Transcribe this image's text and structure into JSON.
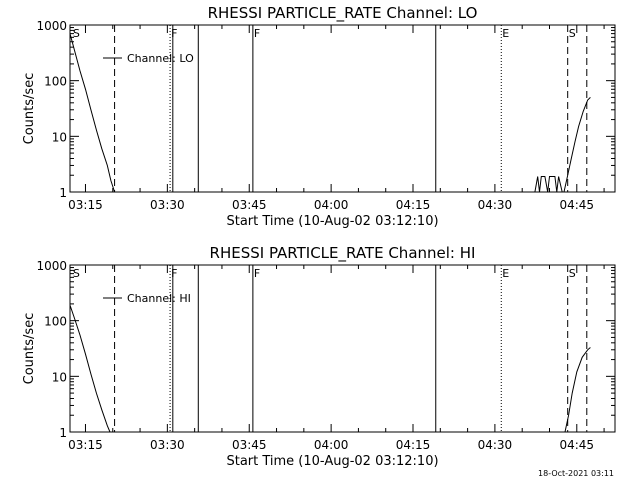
{
  "footer": {
    "date": "18-Oct-2021 03:11"
  },
  "chart_data": [
    {
      "type": "line",
      "title": "RHESSI PARTICLE_RATE Channel: LO",
      "xlabel": "Start Time (10-Aug-02 03:12:10)",
      "ylabel": "Counts/sec",
      "legend": {
        "entry": "Channel: LO",
        "placement": "top-left"
      },
      "yscale": "log",
      "xlim": [
        "03:12:10",
        "04:52:00"
      ],
      "ylim": [
        1,
        1000
      ],
      "x_ticks": [
        "03:15",
        "03:30",
        "03:45",
        "04:00",
        "04:15",
        "04:30",
        "04:45"
      ],
      "y_ticks": [
        "1",
        "10",
        "100",
        "1000"
      ],
      "markers": [
        {
          "time": "03:12:30",
          "label": "S",
          "style": "none"
        },
        {
          "time": "03:20:20",
          "label": "",
          "style": "dashed"
        },
        {
          "time": "03:30:30",
          "label": "F",
          "style": "dotted"
        },
        {
          "time": "03:31:00",
          "label": "",
          "style": "solid"
        },
        {
          "time": "03:35:40",
          "label": "",
          "style": "solid"
        },
        {
          "time": "03:45:40",
          "label": "F",
          "style": "solid"
        },
        {
          "time": "04:19:10",
          "label": "",
          "style": "solid"
        },
        {
          "time": "04:31:10",
          "label": "E",
          "style": "dotted"
        },
        {
          "time": "04:43:20",
          "label": "S",
          "style": "dashed"
        },
        {
          "time": "04:46:50",
          "label": "",
          "style": "dashed"
        }
      ],
      "series": [
        {
          "values": [
            [
              "03:12:10",
              700
            ],
            [
              "03:13:00",
              350
            ],
            [
              "03:14:00",
              150
            ],
            [
              "03:15:00",
              70
            ],
            [
              "03:16:00",
              30
            ],
            [
              "03:17:00",
              13
            ],
            [
              "03:18:00",
              6
            ],
            [
              "03:19:00",
              3
            ],
            [
              "03:19:40",
              1.6
            ],
            [
              "03:20:20",
              1
            ]
          ]
        },
        {
          "values": [
            [
              "04:37:20",
              1
            ],
            [
              "04:37:50",
              1.9
            ],
            [
              "04:38:10",
              1
            ],
            [
              "04:38:30",
              1.9
            ],
            [
              "04:39:10",
              1.9
            ],
            [
              "04:39:40",
              1
            ],
            [
              "04:40:00",
              1.9
            ],
            [
              "04:41:00",
              1.9
            ],
            [
              "04:41:20",
              1
            ],
            [
              "04:41:40",
              1.9
            ],
            [
              "04:42:20",
              1
            ]
          ]
        },
        {
          "values": [
            [
              "04:42:40",
              1
            ],
            [
              "04:43:20",
              2
            ],
            [
              "04:44:00",
              4
            ],
            [
              "04:44:40",
              8
            ],
            [
              "04:45:20",
              15
            ],
            [
              "04:46:10",
              28
            ],
            [
              "04:47:00",
              45
            ],
            [
              "04:47:30",
              50
            ]
          ]
        }
      ]
    },
    {
      "type": "line",
      "title": "RHESSI PARTICLE_RATE Channel: HI",
      "xlabel": "Start Time (10-Aug-02 03:12:10)",
      "ylabel": "Counts/sec",
      "legend": {
        "entry": "Channel: HI",
        "placement": "top-left"
      },
      "yscale": "log",
      "xlim": [
        "03:12:10",
        "04:52:00"
      ],
      "ylim": [
        1,
        1000
      ],
      "x_ticks": [
        "03:15",
        "03:30",
        "03:45",
        "04:00",
        "04:15",
        "04:30",
        "04:45"
      ],
      "y_ticks": [
        "1",
        "10",
        "100",
        "1000"
      ],
      "markers": [
        {
          "time": "03:12:30",
          "label": "S",
          "style": "none"
        },
        {
          "time": "03:20:20",
          "label": "",
          "style": "dashed"
        },
        {
          "time": "03:30:30",
          "label": "F",
          "style": "dotted"
        },
        {
          "time": "03:31:00",
          "label": "",
          "style": "solid"
        },
        {
          "time": "03:35:40",
          "label": "",
          "style": "solid"
        },
        {
          "time": "03:45:40",
          "label": "F",
          "style": "solid"
        },
        {
          "time": "04:19:10",
          "label": "",
          "style": "solid"
        },
        {
          "time": "04:31:10",
          "label": "E",
          "style": "dotted"
        },
        {
          "time": "04:43:20",
          "label": "S",
          "style": "dashed"
        },
        {
          "time": "04:46:50",
          "label": "",
          "style": "dashed"
        }
      ],
      "series": [
        {
          "values": [
            [
              "03:12:10",
              190
            ],
            [
              "03:13:00",
              110
            ],
            [
              "03:14:00",
              55
            ],
            [
              "03:15:00",
              25
            ],
            [
              "03:16:00",
              11
            ],
            [
              "03:17:00",
              5
            ],
            [
              "03:18:00",
              2.5
            ],
            [
              "03:19:00",
              1.3
            ],
            [
              "03:19:30",
              1
            ]
          ]
        },
        {
          "values": [
            [
              "04:42:50",
              1
            ],
            [
              "04:43:30",
              2
            ],
            [
              "04:44:10",
              5
            ],
            [
              "04:45:00",
              12
            ],
            [
              "04:46:00",
              22
            ],
            [
              "04:47:00",
              30
            ],
            [
              "04:47:30",
              33
            ]
          ]
        }
      ]
    }
  ]
}
